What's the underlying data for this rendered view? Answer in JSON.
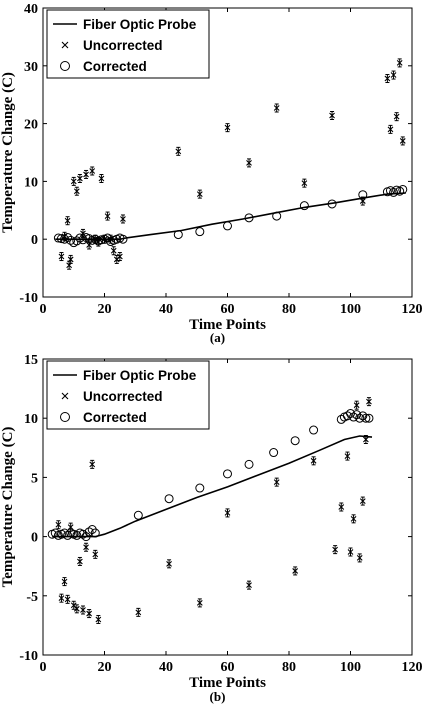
{
  "chart_data": [
    {
      "type": "line",
      "caption": "(a)",
      "xlabel": "Time Points",
      "ylabel": "Temperature Change (C)",
      "xlim": [
        0,
        120
      ],
      "ylim": [
        -10,
        40
      ],
      "xticks": [
        0,
        20,
        40,
        60,
        80,
        100,
        120
      ],
      "yticks": [
        -10,
        0,
        10,
        20,
        30,
        40
      ],
      "grid": false,
      "legend_position": "top-left",
      "legend": [
        "Fiber Optic Probe",
        "Uncorrected",
        "Corrected"
      ],
      "series": [
        {
          "name": "Fiber Optic Probe",
          "style": "line",
          "x": [
            4,
            10,
            15,
            20,
            25,
            27,
            35,
            45,
            55,
            65,
            75,
            85,
            95,
            105,
            112,
            118
          ],
          "y": [
            0,
            0,
            0,
            0,
            0,
            0.2,
            0.8,
            1.5,
            2.6,
            3.5,
            4.5,
            5.5,
            6.3,
            7.2,
            7.8,
            8.0
          ]
        },
        {
          "name": "Uncorrected",
          "style": "x-marker",
          "x": [
            6,
            7,
            8,
            8.5,
            9,
            10,
            11,
            12,
            13,
            14,
            15,
            16,
            17,
            18,
            19,
            20,
            21,
            22,
            23,
            24,
            25,
            26,
            44,
            51,
            60,
            67,
            76,
            85,
            94,
            104,
            112,
            113,
            114,
            115,
            116,
            117
          ],
          "y": [
            -3,
            0.5,
            3.2,
            -4.5,
            -3.5,
            10,
            8.3,
            10.5,
            1,
            11.2,
            -1,
            11.8,
            0,
            -0.5,
            10.5,
            0,
            4,
            0,
            -2,
            -3.5,
            -3,
            3.5,
            15.2,
            7.8,
            19.3,
            13.2,
            22.7,
            9.7,
            21.4,
            6.6,
            27.8,
            19,
            28.4,
            21.2,
            30.5,
            17
          ]
        },
        {
          "name": "Corrected",
          "style": "circle-marker",
          "x": [
            5,
            6,
            7,
            8,
            9,
            10,
            11,
            12,
            13,
            14,
            15,
            16,
            17,
            18,
            19,
            20,
            21,
            22,
            23,
            24,
            25,
            26,
            44,
            51,
            60,
            67,
            76,
            85,
            94,
            104,
            112,
            113,
            114,
            115,
            116,
            117
          ],
          "y": [
            0.2,
            0.1,
            0,
            0.3,
            -0.2,
            -0.6,
            -0.3,
            0.2,
            -0.1,
            0.3,
            0.1,
            -0.2,
            0,
            -0.3,
            -0.1,
            0,
            0.2,
            -0.4,
            -0.2,
            0,
            0.2,
            0,
            0.8,
            1.3,
            2.3,
            3.7,
            4,
            5.8,
            6.1,
            7.7,
            8.2,
            8.4,
            8.1,
            8.5,
            8.3,
            8.6
          ]
        }
      ]
    },
    {
      "type": "line",
      "caption": "(b)",
      "xlabel": "Time Points",
      "ylabel": "Temperature Change (C)",
      "xlim": [
        0,
        120
      ],
      "ylim": [
        -10,
        15
      ],
      "xticks": [
        0,
        20,
        40,
        60,
        80,
        100,
        120
      ],
      "yticks": [
        -10,
        -5,
        0,
        5,
        10,
        15
      ],
      "grid": false,
      "legend_position": "top-left",
      "legend": [
        "Fiber Optic Probe",
        "Uncorrected",
        "Corrected"
      ],
      "series": [
        {
          "name": "Fiber Optic Probe",
          "style": "line",
          "x": [
            3,
            10,
            17,
            20,
            25,
            30,
            40,
            50,
            60,
            70,
            80,
            90,
            98,
            103,
            107
          ],
          "y": [
            0,
            0,
            0,
            0.2,
            0.7,
            1.3,
            2.3,
            3.3,
            4.2,
            5.2,
            6.2,
            7.3,
            8.2,
            8.5,
            8.4
          ]
        },
        {
          "name": "Uncorrected",
          "style": "x-marker",
          "x": [
            5,
            6,
            7,
            8,
            9,
            10,
            11,
            12,
            13,
            14,
            15,
            16,
            17,
            18,
            31,
            41,
            51,
            60,
            67,
            76,
            82,
            88,
            95,
            97,
            99,
            100,
            101,
            102,
            103,
            104,
            105,
            106
          ],
          "y": [
            1.0,
            -5.2,
            -3.8,
            -5.3,
            0.8,
            -5.8,
            -6.1,
            -2.1,
            -6.2,
            -0.9,
            -6.5,
            6.1,
            -1.5,
            -7,
            -6.4,
            -2.3,
            -5.6,
            2.0,
            -4.1,
            4.6,
            -2.9,
            6.4,
            -1.1,
            2.5,
            6.8,
            -1.3,
            1.5,
            11.1,
            -1.8,
            3.0,
            8.2,
            11.4
          ]
        },
        {
          "name": "Corrected",
          "style": "circle-marker",
          "x": [
            3,
            4,
            5,
            6,
            7,
            8,
            9,
            10,
            11,
            12,
            13,
            14,
            15,
            16,
            17,
            31,
            41,
            51,
            60,
            67,
            75,
            82,
            88,
            97,
            98,
            99,
            100,
            101,
            102,
            103,
            104,
            105,
            106
          ],
          "y": [
            0.2,
            0.3,
            0.1,
            0.2,
            0.3,
            0.1,
            0.3,
            0.2,
            0.1,
            0.3,
            0.2,
            0,
            0.4,
            0.6,
            0.3,
            1.8,
            3.2,
            4.1,
            5.3,
            6.1,
            7.1,
            8.1,
            9.0,
            9.9,
            10.1,
            10.2,
            10.4,
            10.1,
            10.3,
            10.0,
            10.2,
            10.0,
            10.0
          ]
        }
      ]
    }
  ]
}
